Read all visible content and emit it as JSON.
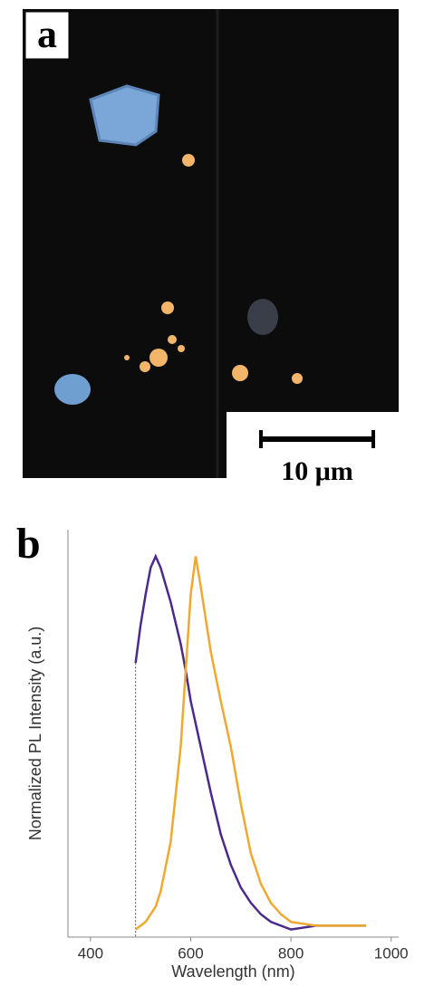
{
  "panel_a": {
    "label": "a",
    "scale_bar": "10 μm"
  },
  "chart_data": {
    "type": "line",
    "panel_label": "b",
    "x_label": "Wavelength (nm)",
    "y_label": "Normalized PL Intensity (a.u.)",
    "x": [
      490,
      500,
      510,
      520,
      530,
      540,
      560,
      580,
      590,
      600,
      610,
      620,
      640,
      660,
      680,
      700,
      720,
      740,
      760,
      780,
      800,
      850,
      900,
      950
    ],
    "series": [
      {
        "color": "#4b2a8c",
        "values": [
          0.72,
          0.82,
          0.9,
          0.97,
          1.0,
          0.97,
          0.88,
          0.77,
          0.7,
          0.62,
          0.56,
          0.5,
          0.38,
          0.27,
          0.19,
          0.13,
          0.09,
          0.06,
          0.04,
          0.03,
          0.02,
          0.03,
          0.03,
          0.03
        ]
      },
      {
        "color": "#f0a830",
        "values": [
          0.02,
          0.03,
          0.04,
          0.06,
          0.08,
          0.12,
          0.25,
          0.5,
          0.7,
          0.9,
          1.0,
          0.92,
          0.75,
          0.62,
          0.5,
          0.35,
          0.22,
          0.14,
          0.09,
          0.06,
          0.04,
          0.03,
          0.03,
          0.03
        ]
      }
    ],
    "xlim": [
      355,
      1015
    ],
    "xticks": [
      400,
      600,
      800,
      1000
    ],
    "ylim": [
      0,
      1.07
    ]
  }
}
